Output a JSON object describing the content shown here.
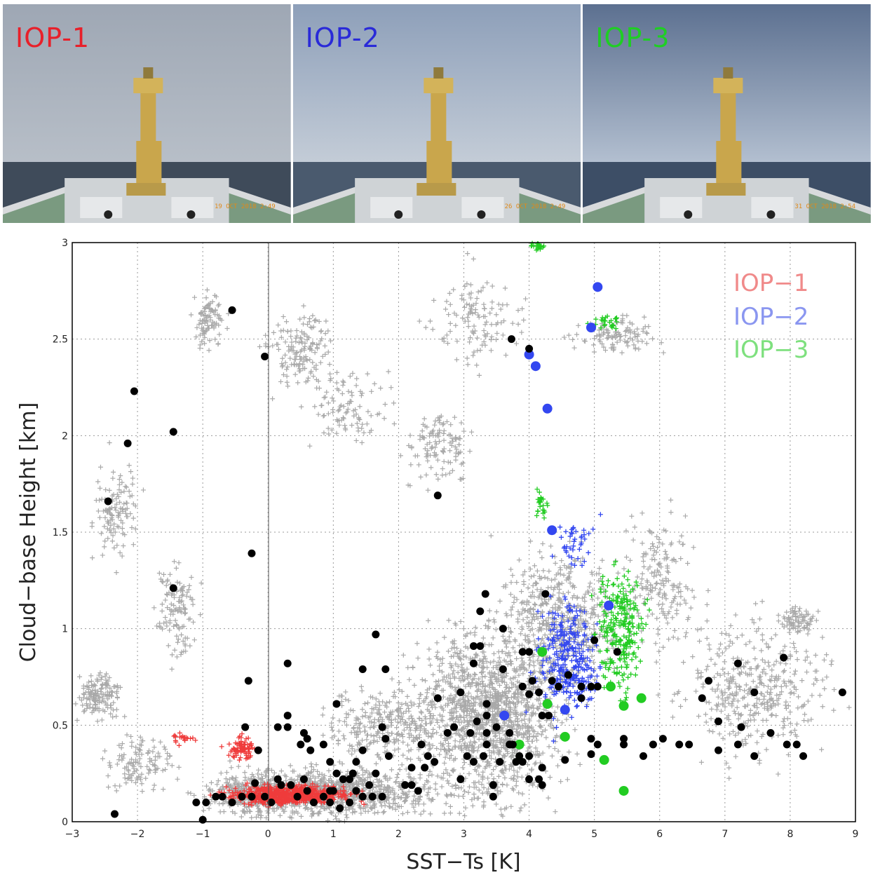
{
  "photos": [
    {
      "label": "IOP-1",
      "color": "#e8202a",
      "stamp": "19 OCT 2018  2:49",
      "sky_top": "#9ea7b4",
      "sky_bottom": "#b9c0c9",
      "sea": "#3f4b5a"
    },
    {
      "label": "IOP-2",
      "color": "#2a2ad8",
      "stamp": "26 OCT 2018  2:49",
      "sky_top": "#8d9fb9",
      "sky_bottom": "#c7cfd9",
      "sea": "#4a5a6e"
    },
    {
      "label": "IOP-3",
      "color": "#1fce24",
      "stamp": "31 OCT 2018  2:54",
      "sky_top": "#5c7090",
      "sky_bottom": "#b8c4d4",
      "sea": "#3d4e66"
    }
  ],
  "colors": {
    "background_cloud": "#a9a9a9",
    "black_points": "#000000",
    "iop1": "#ef3b3b",
    "iop2": "#3347f0",
    "iop3": "#22cc22",
    "legend_iop1": "#f08a8a",
    "legend_iop2": "#8a96f0",
    "legend_iop3": "#7ee07e"
  },
  "chart_data": {
    "type": "scatter",
    "title": "",
    "xlabel": "SST−Ts [K]",
    "ylabel": "Cloud−base Height [km]",
    "xlim": [
      -3,
      9
    ],
    "ylim": [
      0,
      3
    ],
    "xticks": [
      "−3",
      "−2",
      "−1",
      "0",
      "1",
      "2",
      "3",
      "4",
      "5",
      "6",
      "7",
      "8",
      "9"
    ],
    "yticks": [
      "0",
      "0.5",
      "1",
      "1.5",
      "2",
      "2.5",
      "3"
    ],
    "grid": true,
    "legend_position": "top-right",
    "legend": [
      "IOP−1",
      "IOP−2",
      "IOP−3"
    ],
    "series": [
      {
        "name": "IOP−1",
        "marker": "dot",
        "points": []
      },
      {
        "name": "IOP−2",
        "marker": "dot",
        "points": [
          [
            5.05,
            2.77
          ],
          [
            4.95,
            2.56
          ],
          [
            4.0,
            2.42
          ],
          [
            4.1,
            2.36
          ],
          [
            4.28,
            2.14
          ],
          [
            4.35,
            1.51
          ],
          [
            5.22,
            1.12
          ],
          [
            4.55,
            0.58
          ],
          [
            3.62,
            0.55
          ]
        ]
      },
      {
        "name": "IOP−3",
        "marker": "dot",
        "points": [
          [
            4.2,
            0.88
          ],
          [
            5.25,
            0.7
          ],
          [
            4.28,
            0.61
          ],
          [
            5.45,
            0.6
          ],
          [
            5.72,
            0.64
          ],
          [
            4.55,
            0.44
          ],
          [
            3.85,
            0.4
          ],
          [
            5.15,
            0.32
          ],
          [
            5.45,
            0.16
          ]
        ]
      },
      {
        "name": "",
        "marker": "dot-black",
        "points": [
          [
            -0.55,
            2.65
          ],
          [
            -0.05,
            2.41
          ],
          [
            3.73,
            2.5
          ],
          [
            4.0,
            2.45
          ],
          [
            -2.05,
            2.23
          ],
          [
            -1.45,
            2.02
          ],
          [
            -2.15,
            1.96
          ],
          [
            -2.45,
            1.66
          ],
          [
            2.6,
            1.69
          ],
          [
            -0.25,
            1.39
          ],
          [
            -1.45,
            1.21
          ],
          [
            3.33,
            1.18
          ],
          [
            4.25,
            1.18
          ],
          [
            3.25,
            1.09
          ],
          [
            3.15,
            0.91
          ],
          [
            3.25,
            0.91
          ],
          [
            3.6,
            1.0
          ],
          [
            5.0,
            0.94
          ],
          [
            5.35,
            0.88
          ],
          [
            3.9,
            0.88
          ],
          [
            4.0,
            0.88
          ],
          [
            1.65,
            0.97
          ],
          [
            0.3,
            0.82
          ],
          [
            1.45,
            0.79
          ],
          [
            1.8,
            0.79
          ],
          [
            3.15,
            0.82
          ],
          [
            3.6,
            0.79
          ],
          [
            -0.3,
            0.73
          ],
          [
            4.05,
            0.73
          ],
          [
            4.35,
            0.73
          ],
          [
            4.6,
            0.76
          ],
          [
            4.8,
            0.7
          ],
          [
            4.95,
            0.7
          ],
          [
            5.05,
            0.7
          ],
          [
            3.9,
            0.7
          ],
          [
            4.45,
            0.7
          ],
          [
            4.15,
            0.67
          ],
          [
            4.0,
            0.66
          ],
          [
            4.8,
            0.64
          ],
          [
            2.6,
            0.64
          ],
          [
            2.95,
            0.67
          ],
          [
            3.35,
            0.61
          ],
          [
            1.05,
            0.61
          ],
          [
            4.2,
            0.55
          ],
          [
            4.3,
            0.55
          ],
          [
            6.75,
            0.73
          ],
          [
            7.2,
            0.82
          ],
          [
            7.9,
            0.85
          ],
          [
            7.45,
            0.67
          ],
          [
            6.65,
            0.64
          ],
          [
            8.8,
            0.67
          ],
          [
            6.9,
            0.52
          ],
          [
            7.25,
            0.49
          ],
          [
            7.7,
            0.46
          ],
          [
            7.95,
            0.4
          ],
          [
            8.1,
            0.4
          ],
          [
            8.2,
            0.34
          ],
          [
            6.9,
            0.37
          ],
          [
            7.2,
            0.4
          ],
          [
            7.45,
            0.34
          ],
          [
            6.05,
            0.43
          ],
          [
            5.9,
            0.4
          ],
          [
            5.75,
            0.34
          ],
          [
            6.3,
            0.4
          ],
          [
            6.45,
            0.4
          ],
          [
            5.45,
            0.43
          ],
          [
            5.45,
            0.4
          ],
          [
            5.05,
            0.4
          ],
          [
            4.95,
            0.43
          ],
          [
            4.95,
            0.35
          ],
          [
            4.55,
            0.32
          ],
          [
            3.35,
            0.55
          ],
          [
            3.35,
            0.46
          ],
          [
            3.35,
            0.4
          ],
          [
            3.2,
            0.52
          ],
          [
            3.1,
            0.46
          ],
          [
            3.5,
            0.49
          ],
          [
            3.7,
            0.46
          ],
          [
            3.75,
            0.4
          ],
          [
            3.85,
            0.34
          ],
          [
            3.9,
            0.31
          ],
          [
            3.8,
            0.31
          ],
          [
            3.55,
            0.31
          ],
          [
            3.7,
            0.4
          ],
          [
            4.0,
            0.34
          ],
          [
            4.2,
            0.28
          ],
          [
            4.0,
            0.22
          ],
          [
            4.2,
            0.19
          ],
          [
            4.15,
            0.22
          ],
          [
            3.45,
            0.19
          ],
          [
            3.45,
            0.13
          ],
          [
            3.3,
            0.34
          ],
          [
            3.15,
            0.31
          ],
          [
            3.05,
            0.34
          ],
          [
            2.95,
            0.22
          ],
          [
            2.75,
            0.46
          ],
          [
            2.85,
            0.49
          ],
          [
            2.35,
            0.4
          ],
          [
            2.4,
            0.28
          ],
          [
            2.55,
            0.31
          ],
          [
            2.45,
            0.34
          ],
          [
            2.2,
            0.28
          ],
          [
            2.2,
            0.19
          ],
          [
            2.1,
            0.19
          ],
          [
            2.3,
            0.16
          ],
          [
            1.75,
            0.49
          ],
          [
            1.8,
            0.43
          ],
          [
            1.85,
            0.34
          ],
          [
            1.65,
            0.25
          ],
          [
            1.55,
            0.19
          ],
          [
            1.45,
            0.13
          ],
          [
            1.35,
            0.31
          ],
          [
            1.45,
            0.37
          ],
          [
            1.25,
            0.22
          ],
          [
            1.3,
            0.25
          ],
          [
            1.15,
            0.22
          ],
          [
            1.05,
            0.25
          ],
          [
            0.95,
            0.16
          ],
          [
            0.95,
            0.31
          ],
          [
            0.85,
            0.4
          ],
          [
            0.6,
            0.43
          ],
          [
            0.55,
            0.46
          ],
          [
            0.65,
            0.37
          ],
          [
            0.5,
            0.4
          ],
          [
            0.55,
            0.22
          ],
          [
            0.3,
            0.55
          ],
          [
            0.15,
            0.49
          ],
          [
            0.3,
            0.49
          ],
          [
            0.15,
            0.22
          ],
          [
            0.2,
            0.19
          ],
          [
            0.35,
            0.19
          ],
          [
            -0.35,
            0.49
          ],
          [
            -0.15,
            0.37
          ],
          [
            -0.2,
            0.2
          ],
          [
            -0.25,
            0.13
          ],
          [
            -0.05,
            0.13
          ],
          [
            0.05,
            0.1
          ],
          [
            -0.4,
            0.13
          ],
          [
            -0.55,
            0.1
          ],
          [
            -0.95,
            0.1
          ],
          [
            -1.1,
            0.1
          ],
          [
            -1.0,
            0.01
          ],
          [
            -0.8,
            0.13
          ],
          [
            -0.7,
            0.13
          ],
          [
            -2.35,
            0.04
          ],
          [
            0.45,
            0.13
          ],
          [
            0.6,
            0.16
          ],
          [
            0.7,
            0.1
          ],
          [
            0.85,
            0.13
          ],
          [
            0.95,
            0.1
          ],
          [
            1.1,
            0.07
          ],
          [
            1.25,
            0.1
          ],
          [
            1.35,
            0.16
          ],
          [
            1.6,
            0.13
          ],
          [
            1.75,
            0.13
          ],
          [
            1.0,
            0.16
          ]
        ]
      }
    ]
  }
}
